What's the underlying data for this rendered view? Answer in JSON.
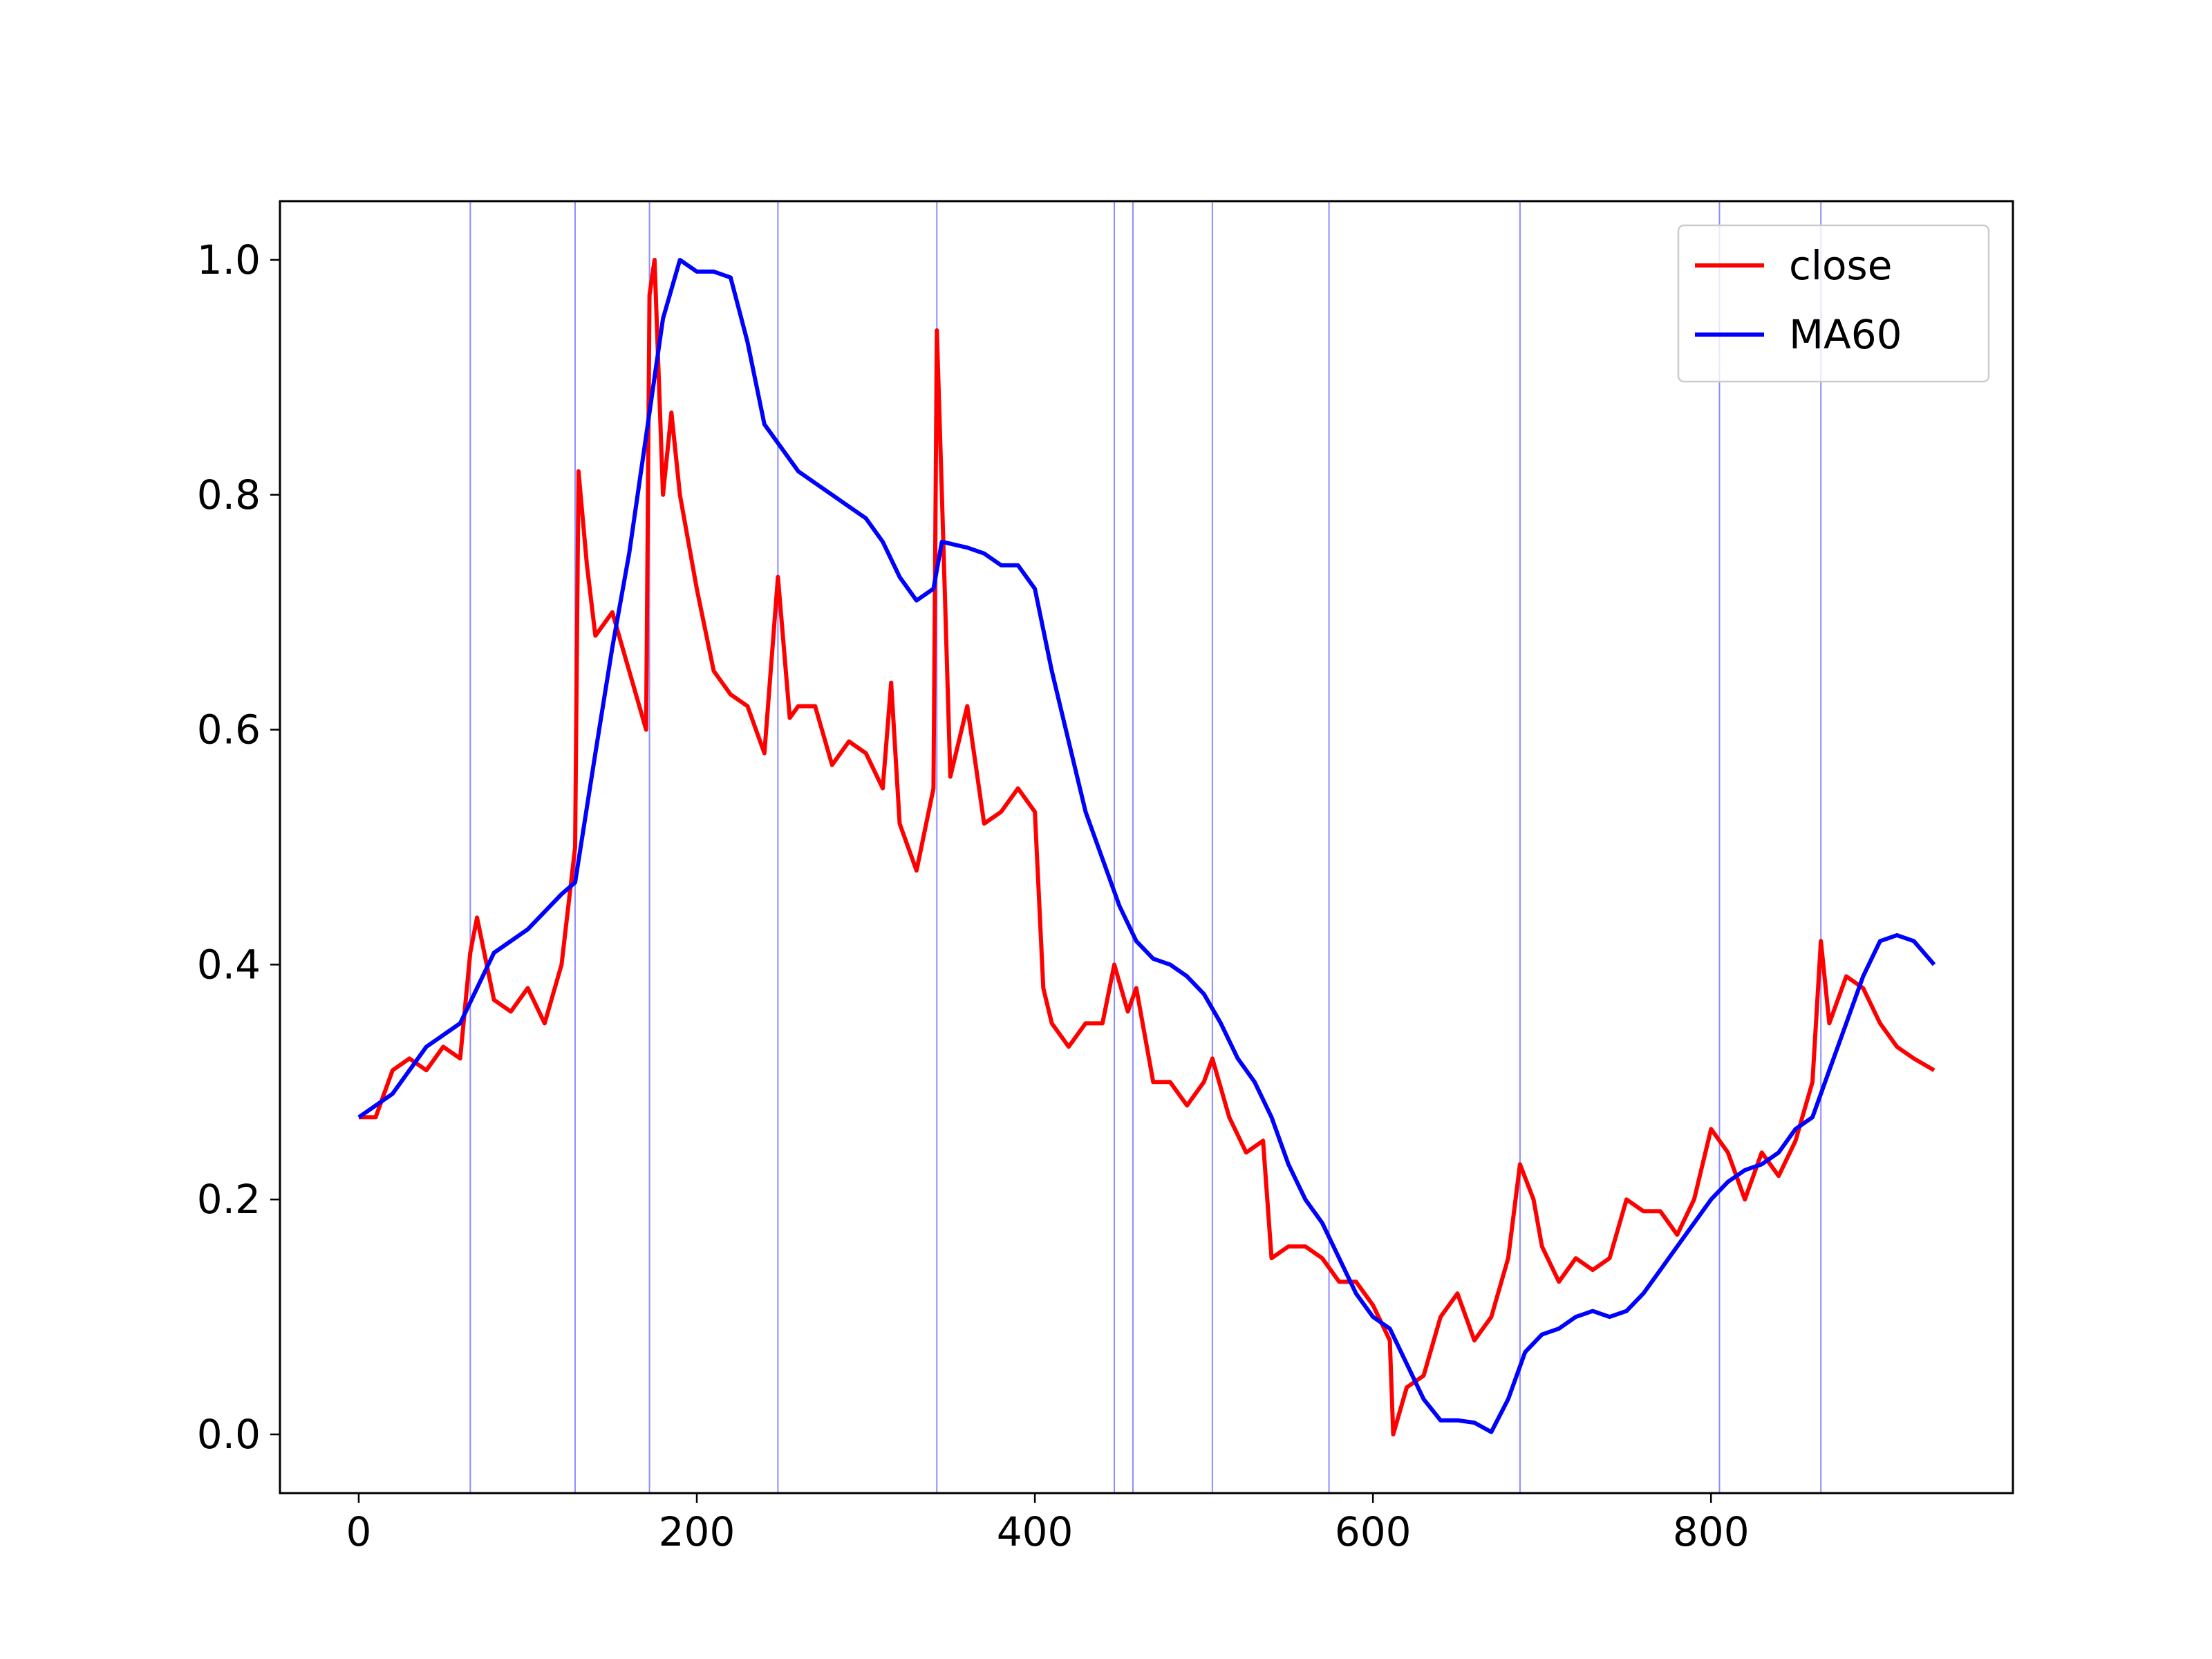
{
  "chart_data": {
    "type": "line",
    "xlim": [
      -46.6,
      978.6
    ],
    "ylim": [
      -0.05,
      1.05
    ],
    "xticks": [
      0,
      200,
      400,
      600,
      800
    ],
    "yticks": [
      {
        "value": 0,
        "label": "0.0"
      },
      0.2,
      0.4,
      0.6,
      0.8,
      {
        "value": 1,
        "label": "1.0"
      }
    ],
    "grid": false,
    "legend": "upper right",
    "vlines": [
      66,
      128,
      172,
      248,
      342,
      447,
      458,
      505,
      574,
      687,
      805,
      865
    ],
    "vline_color": "#0000ff",
    "series": [
      {
        "name": "close",
        "color": "#ff0000",
        "x": [
          0,
          10,
          20,
          30,
          40,
          50,
          60,
          66,
          70,
          80,
          90,
          100,
          110,
          120,
          128,
          130,
          135,
          140,
          150,
          160,
          170,
          172,
          175,
          180,
          185,
          190,
          200,
          210,
          220,
          230,
          240,
          248,
          255,
          260,
          270,
          280,
          290,
          300,
          310,
          315,
          320,
          330,
          340,
          342,
          345,
          350,
          360,
          370,
          380,
          390,
          400,
          405,
          410,
          420,
          430,
          440,
          447,
          455,
          460,
          470,
          480,
          490,
          500,
          505,
          515,
          525,
          535,
          540,
          550,
          560,
          570,
          580,
          590,
          600,
          610,
          612,
          620,
          630,
          640,
          650,
          660,
          670,
          680,
          687,
          695,
          700,
          710,
          720,
          730,
          740,
          750,
          760,
          770,
          780,
          790,
          800,
          810,
          820,
          830,
          840,
          850,
          860,
          865,
          870,
          880,
          890,
          900,
          910,
          920,
          932
        ],
        "values": [
          0.27,
          0.27,
          0.31,
          0.32,
          0.31,
          0.33,
          0.32,
          0.41,
          0.44,
          0.37,
          0.36,
          0.38,
          0.35,
          0.4,
          0.5,
          0.82,
          0.74,
          0.68,
          0.7,
          0.65,
          0.6,
          0.97,
          1.0,
          0.8,
          0.87,
          0.8,
          0.72,
          0.65,
          0.63,
          0.62,
          0.58,
          0.73,
          0.61,
          0.62,
          0.62,
          0.57,
          0.59,
          0.58,
          0.55,
          0.64,
          0.52,
          0.48,
          0.55,
          0.94,
          0.8,
          0.56,
          0.62,
          0.52,
          0.53,
          0.55,
          0.53,
          0.38,
          0.35,
          0.33,
          0.35,
          0.35,
          0.4,
          0.36,
          0.38,
          0.3,
          0.3,
          0.28,
          0.3,
          0.32,
          0.27,
          0.24,
          0.25,
          0.15,
          0.16,
          0.16,
          0.15,
          0.13,
          0.13,
          0.11,
          0.08,
          0.0,
          0.04,
          0.05,
          0.1,
          0.12,
          0.08,
          0.1,
          0.15,
          0.23,
          0.2,
          0.16,
          0.13,
          0.15,
          0.14,
          0.15,
          0.2,
          0.19,
          0.19,
          0.17,
          0.2,
          0.26,
          0.24,
          0.2,
          0.24,
          0.22,
          0.25,
          0.3,
          0.42,
          0.35,
          0.39,
          0.38,
          0.35,
          0.33,
          0.32,
          0.31
        ]
      },
      {
        "name": "MA60",
        "color": "#0000ff",
        "x": [
          0,
          20,
          40,
          60,
          70,
          80,
          100,
          120,
          128,
          140,
          150,
          160,
          170,
          180,
          190,
          200,
          210,
          220,
          230,
          240,
          250,
          260,
          270,
          280,
          290,
          300,
          310,
          320,
          330,
          340,
          345,
          360,
          370,
          380,
          390,
          400,
          410,
          420,
          430,
          440,
          450,
          460,
          470,
          480,
          490,
          500,
          510,
          520,
          530,
          540,
          550,
          560,
          570,
          580,
          590,
          600,
          610,
          620,
          630,
          640,
          650,
          660,
          670,
          680,
          690,
          700,
          710,
          720,
          730,
          740,
          750,
          760,
          770,
          780,
          790,
          800,
          810,
          820,
          830,
          840,
          850,
          860,
          870,
          880,
          890,
          900,
          910,
          920,
          932
        ],
        "values": [
          0.27,
          0.29,
          0.33,
          0.35,
          0.38,
          0.41,
          0.43,
          0.46,
          0.47,
          0.58,
          0.67,
          0.75,
          0.85,
          0.95,
          1.0,
          0.99,
          0.99,
          0.985,
          0.93,
          0.86,
          0.84,
          0.82,
          0.81,
          0.8,
          0.79,
          0.78,
          0.76,
          0.73,
          0.71,
          0.72,
          0.76,
          0.755,
          0.75,
          0.74,
          0.74,
          0.72,
          0.65,
          0.59,
          0.53,
          0.49,
          0.45,
          0.42,
          0.405,
          0.4,
          0.39,
          0.375,
          0.35,
          0.32,
          0.3,
          0.27,
          0.23,
          0.2,
          0.18,
          0.15,
          0.12,
          0.1,
          0.09,
          0.06,
          0.03,
          0.012,
          0.012,
          0.01,
          0.002,
          0.03,
          0.07,
          0.085,
          0.09,
          0.1,
          0.105,
          0.1,
          0.105,
          0.12,
          0.14,
          0.16,
          0.18,
          0.2,
          0.215,
          0.225,
          0.23,
          0.24,
          0.26,
          0.27,
          0.31,
          0.35,
          0.39,
          0.42,
          0.425,
          0.42,
          0.4
        ]
      }
    ]
  }
}
